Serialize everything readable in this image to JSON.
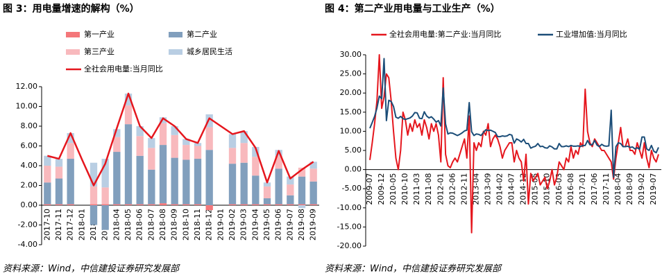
{
  "chart_data": [
    {
      "type": "bar",
      "stacked": true,
      "title": "图 3：用电量增速的解构（%）",
      "source": "资料来源：Wind，中信建投证券研究发展部",
      "categories": [
        "2017-10",
        "2017-11",
        "2017-12",
        "2018-01",
        "2018-02",
        "2018-03",
        "2018-04",
        "2018-05",
        "2018-06",
        "2018-07",
        "2018-08",
        "2018-09",
        "2018-10",
        "2018-11",
        "2018-12",
        "2019-01",
        "2019-02",
        "2019-03",
        "2019-04",
        "2019-05",
        "2019-06",
        "2019-07",
        "2019-08",
        "2019-09"
      ],
      "ylim": [
        -4,
        12
      ],
      "yticks": [
        {
          "value": -4,
          "label": "-4.00"
        },
        {
          "value": -2,
          "label": "-2.00"
        },
        {
          "value": 0,
          "label": "0.00"
        },
        {
          "value": 2,
          "label": "2.00"
        },
        {
          "value": 4,
          "label": "4.00"
        },
        {
          "value": 6,
          "label": "6.00"
        },
        {
          "value": 8,
          "label": "8.00"
        },
        {
          "value": 10,
          "label": "10.00"
        },
        {
          "value": 12,
          "label": "12.00"
        }
      ],
      "series": [
        {
          "name": "第一产业",
          "type": "bar",
          "color": "#f4777a",
          "values": [
            0.1,
            0.1,
            0.1,
            null,
            0.1,
            0.1,
            0.1,
            0.1,
            0.1,
            0.1,
            0.2,
            0.1,
            0.1,
            0.1,
            -0.5,
            null,
            0.1,
            0.1,
            0.1,
            0.1,
            0.1,
            0.1,
            0.1,
            0.1
          ]
        },
        {
          "name": "第二产业",
          "type": "bar",
          "color": "#819fbd",
          "values": [
            2.2,
            2.6,
            4.6,
            null,
            -2.0,
            -2.5,
            5.3,
            8.1,
            4.9,
            3.5,
            5.9,
            4.7,
            4.5,
            4.6,
            5.6,
            null,
            4.1,
            4.2,
            2.9,
            0.6,
            3.6,
            0.9,
            2.8,
            2.3
          ]
        },
        {
          "name": "第三产业",
          "type": "bar",
          "color": "#f8b9bd",
          "values": [
            1.7,
            1.2,
            1.6,
            null,
            1.8,
            1.7,
            1.5,
            1.9,
            2.0,
            2.2,
            2.2,
            2.3,
            1.5,
            1.3,
            2.3,
            null,
            1.6,
            2.0,
            1.9,
            1.2,
            1.3,
            1.1,
            0.9,
            1.3
          ]
        },
        {
          "name": "城乡居民生活",
          "type": "bar",
          "color": "#b9cee3",
          "values": [
            1.0,
            0.8,
            1.0,
            null,
            2.4,
            2.9,
            0.8,
            1.2,
            1.0,
            1.0,
            0.6,
            0.9,
            0.6,
            0.3,
            1.3,
            null,
            1.4,
            1.2,
            1.0,
            0.4,
            0.6,
            0.8,
            -0.3,
            0.7
          ]
        },
        {
          "name": "全社会用电量:当月同比",
          "type": "line",
          "color": "#e5161d",
          "values": [
            5.0,
            4.7,
            7.3,
            4.6,
            2.0,
            4.2,
            7.8,
            11.3,
            8.0,
            6.8,
            8.8,
            8.0,
            6.7,
            6.3,
            8.8,
            8.0,
            7.2,
            7.5,
            5.8,
            2.3,
            5.5,
            2.7,
            3.6,
            4.4
          ]
        }
      ]
    },
    {
      "type": "line",
      "title": "图 4：第二产业用电量与工业生产（%）",
      "source": "资料来源：Wind，中信建投证券研究发展部",
      "categories": [
        "2009-07",
        null,
        null,
        null,
        null,
        "2009-12",
        null,
        null,
        null,
        null,
        "2010-05",
        null,
        null,
        null,
        null,
        "2010-10",
        null,
        null,
        null,
        null,
        "2011-03",
        null,
        null,
        null,
        null,
        "2011-08",
        null,
        null,
        null,
        null,
        "2012-01",
        null,
        null,
        null,
        null,
        "2012-06",
        null,
        null,
        null,
        null,
        "2012-11",
        null,
        null,
        null,
        null,
        "2013-04",
        null,
        null,
        null,
        null,
        "2013-09",
        null,
        null,
        null,
        null,
        "2014-02",
        null,
        null,
        null,
        null,
        "2014-07",
        null,
        null,
        null,
        null,
        "2014-12",
        null,
        null,
        null,
        null,
        "2015-05",
        null,
        null,
        null,
        null,
        "2015-10",
        null,
        null,
        null,
        null,
        "2016-03",
        null,
        null,
        null,
        null,
        "2016-08",
        null,
        null,
        null,
        null,
        "2017-01",
        null,
        null,
        null,
        null,
        "2017-06",
        null,
        null,
        null,
        null,
        "2017-11",
        null,
        null,
        null,
        null,
        "2018-04",
        null,
        null,
        null,
        null,
        "2018-09",
        null,
        null,
        null,
        null,
        "2019-02",
        null,
        null,
        null,
        null,
        "2019-07",
        null,
        null
      ],
      "ylim": [
        -20,
        30
      ],
      "yticks": [
        {
          "value": -20,
          "label": "-20.00"
        },
        {
          "value": -15,
          "label": "-15.00"
        },
        {
          "value": -10,
          "label": "-10.00"
        },
        {
          "value": -5,
          "label": "-5.00"
        },
        {
          "value": 0,
          "label": "0.00"
        },
        {
          "value": 5,
          "label": "5.00"
        },
        {
          "value": 10,
          "label": "10.00"
        },
        {
          "value": 15,
          "label": "15.00"
        },
        {
          "value": 20,
          "label": "20.00"
        },
        {
          "value": 25,
          "label": "25.00"
        },
        {
          "value": 30,
          "label": "30.00"
        }
      ],
      "series": [
        {
          "name": "全社会用电量:第二产业:当月同比",
          "type": "line",
          "color": "#e5161d",
          "values": [
            2.5,
            7,
            12,
            18,
            30,
            16,
            19,
            25,
            24,
            18,
            10,
            3,
            0,
            5,
            15,
            13,
            9,
            12,
            10,
            13,
            11,
            12,
            9,
            13,
            11,
            8,
            12,
            10,
            12,
            9,
            2,
            24,
            4,
            1,
            0.5,
            2,
            3,
            2,
            4,
            6,
            8,
            3,
            14,
            -16.5,
            7,
            5,
            7,
            6,
            10,
            9,
            12,
            6,
            8,
            9,
            8,
            6,
            3,
            5,
            6,
            7,
            7,
            2,
            5,
            3,
            2,
            -3,
            4,
            -9,
            -1,
            -3,
            -2,
            -1,
            -4,
            -3,
            -2,
            -5,
            -3,
            0,
            -4,
            -2,
            2,
            1,
            0,
            3,
            2,
            6,
            3,
            5,
            4,
            7,
            6,
            21,
            10,
            7,
            6,
            8,
            7,
            6,
            5,
            5,
            4,
            3,
            2,
            -2.5,
            3,
            7,
            11,
            6,
            6,
            8,
            5,
            5,
            4,
            7,
            5,
            3,
            7,
            3,
            0.5,
            5,
            3,
            2,
            4
          ]
        },
        {
          "name": "工业增加值:当月同比",
          "type": "line",
          "color": "#1b4d78",
          "values": [
            10.8,
            12.3,
            13.9,
            16.1,
            19.2,
            18.5,
            29,
            12.8,
            18.1,
            17.8,
            16.5,
            13.7,
            13.4,
            13.9,
            13.3,
            13.1,
            13.3,
            13.5,
            14,
            14.9,
            14.8,
            13.4,
            13.3,
            15.1,
            14,
            13.5,
            13.8,
            13.2,
            12.4,
            12.8,
            11.4,
            21.3,
            11.9,
            9.3,
            9.6,
            9.5,
            9.2,
            8.9,
            9.2,
            9.6,
            10.1,
            10.3,
            17.5,
            9.9,
            8.9,
            9.3,
            9.2,
            8.9,
            9.7,
            10.4,
            10.2,
            10.3,
            10,
            9.7,
            8.6,
            8.6,
            8.8,
            8.7,
            8.8,
            9.2,
            9,
            6.9,
            8,
            7.7,
            7.2,
            7.9,
            6.8,
            6.8,
            5.6,
            5.9,
            6.1,
            6.8,
            6,
            6.1,
            5.7,
            5.6,
            6.2,
            5.9,
            5.4,
            5.4,
            6.8,
            6,
            6,
            6.2,
            6,
            6.3,
            6.1,
            6.1,
            6.2,
            6,
            6.3,
            6.3,
            7.6,
            6.5,
            6.5,
            7.6,
            6.4,
            6,
            6.6,
            6.2,
            6.1,
            6.2,
            15.5,
            -2,
            6,
            7,
            6.8,
            6,
            6,
            6.1,
            5.8,
            5.9,
            5.4,
            5.7,
            5.3,
            8.5,
            8.5,
            5.4,
            5,
            6.3,
            4.8,
            4.4,
            5.8
          ]
        }
      ]
    }
  ]
}
